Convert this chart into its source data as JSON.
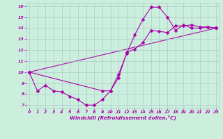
{
  "xlabel": "Windchill (Refroidissement éolien,°C)",
  "bg_color": "#cceedd",
  "grid_color": "#aacccc",
  "line_color": "#aa00aa",
  "markersize": 2.5,
  "linewidth": 0.8,
  "line1_x": [
    0,
    1,
    2,
    3,
    4,
    5,
    6,
    7,
    8,
    9,
    10,
    11,
    12,
    13,
    14,
    15,
    16,
    17,
    18,
    19,
    20,
    21,
    22,
    23
  ],
  "line1_y": [
    10.0,
    8.3,
    8.8,
    8.3,
    8.2,
    7.8,
    7.5,
    7.0,
    7.0,
    7.5,
    8.3,
    9.8,
    11.7,
    13.4,
    14.8,
    15.9,
    15.9,
    15.0,
    13.8,
    14.3,
    14.0,
    14.0,
    14.1,
    14.0
  ],
  "line2_x": [
    0,
    9,
    10,
    11,
    12,
    13,
    14,
    15,
    16,
    17,
    18,
    19,
    20,
    21,
    22,
    23
  ],
  "line2_y": [
    10.0,
    8.3,
    8.3,
    9.5,
    11.8,
    12.1,
    12.7,
    13.8,
    13.7,
    13.6,
    14.2,
    14.2,
    14.3,
    14.1,
    14.1,
    14.0
  ],
  "line3_x": [
    0,
    23
  ],
  "line3_y": [
    10.0,
    14.0
  ],
  "xlim": [
    0,
    23
  ],
  "ylim": [
    6.7,
    16.3
  ],
  "yticks": [
    7,
    8,
    9,
    10,
    11,
    12,
    13,
    14,
    15,
    16
  ],
  "xticks": [
    0,
    1,
    2,
    3,
    4,
    5,
    6,
    7,
    8,
    9,
    10,
    11,
    12,
    13,
    14,
    15,
    16,
    17,
    18,
    19,
    20,
    21,
    22,
    23
  ]
}
